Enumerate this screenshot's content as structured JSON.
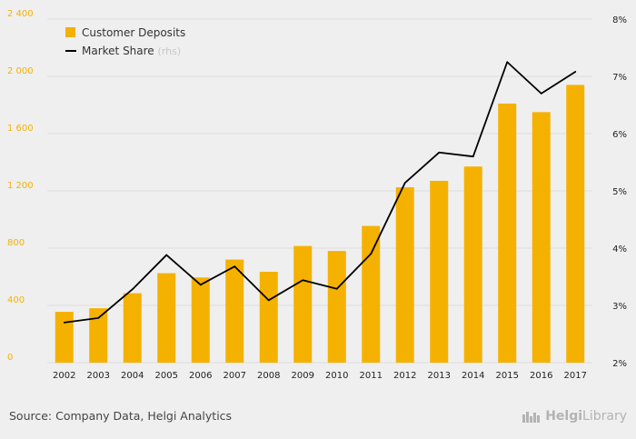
{
  "chart_data": {
    "type": "bar+line",
    "categories": [
      "2002",
      "2003",
      "2004",
      "2005",
      "2006",
      "2007",
      "2008",
      "2009",
      "2010",
      "2011",
      "2012",
      "2013",
      "2014",
      "2015",
      "2016",
      "2017"
    ],
    "series": [
      {
        "name": "Customer Deposits",
        "type": "bar",
        "axis": "left",
        "color": "#f5b100",
        "values": [
          355,
          380,
          485,
          625,
          595,
          720,
          635,
          815,
          780,
          955,
          1225,
          1270,
          1370,
          1810,
          1750,
          1940
        ]
      },
      {
        "name": "Market Share",
        "note": "(rhs)",
        "type": "line",
        "axis": "right",
        "color": "#000000",
        "values": [
          2.7,
          2.78,
          3.28,
          3.88,
          3.36,
          3.68,
          3.09,
          3.44,
          3.29,
          3.9,
          5.14,
          5.67,
          5.6,
          7.25,
          6.7,
          7.08
        ]
      }
    ],
    "y_left": {
      "min": 0,
      "max": 2400,
      "ticks": [
        0,
        400,
        800,
        1200,
        1600,
        2000,
        2400
      ],
      "tick_labels": [
        "0",
        "400",
        "800",
        "1 200",
        "1 600",
        "2 000",
        "2 400"
      ]
    },
    "y_right": {
      "min": 2,
      "max": 8,
      "ticks": [
        2,
        3,
        4,
        5,
        6,
        7,
        8
      ],
      "tick_labels": [
        "2%",
        "3%",
        "4%",
        "5%",
        "6%",
        "7%",
        "8%"
      ]
    },
    "grid": true,
    "legend": "top-left"
  },
  "footer": {
    "source": "Source: Company Data, Helgi Analytics",
    "brand_a": "Helgi",
    "brand_b": "Library"
  },
  "colors": {
    "bar": "#f5b100",
    "line": "#000000",
    "grid": "#dcdcdc",
    "background": "#efefef"
  }
}
